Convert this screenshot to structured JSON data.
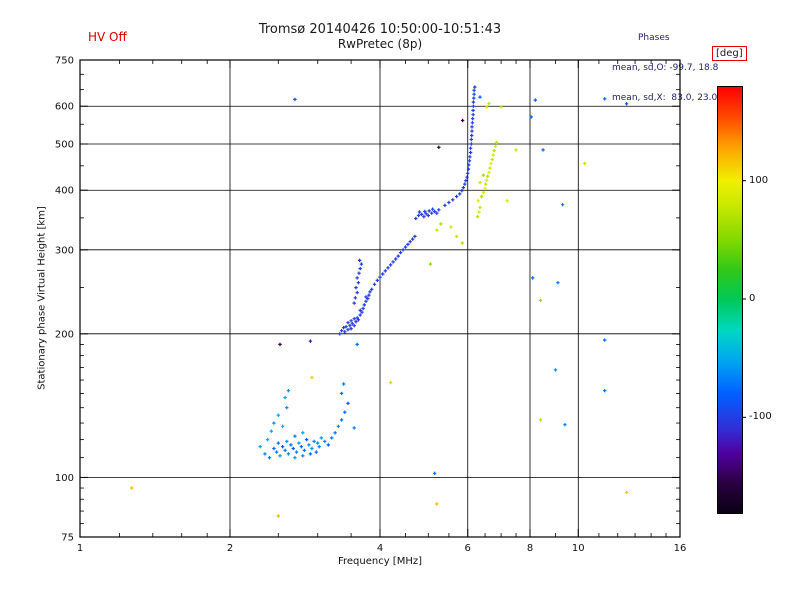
{
  "header": {
    "hv_off": "HV Off",
    "title": "Tromsø 20140426 10:50:00-10:51:43",
    "subtitle": "RwPretec (8p)",
    "phases": {
      "line1": "Phases",
      "line2": "mean, sd,O: -99.7, 18.8",
      "line3": "mean, sd,X:  83.0, 23.0"
    }
  },
  "colors": {
    "hv_off_red": "#d40000",
    "colorbar_box_red": "#e00000",
    "annotation_blue": "#23236b",
    "axis_black": "#000000"
  },
  "chart_data": {
    "type": "scatter",
    "title": "Tromsø 20140426 10:50:00-10:51:43",
    "subtitle": "RwPretec (8p)",
    "xlabel": "Frequency [MHz]",
    "ylabel": "Stationary phase Virtual Height [km]",
    "x_scale": "log",
    "y_scale": "log",
    "xlim": [
      1,
      16
    ],
    "ylim": [
      75,
      750
    ],
    "x_ticks": [
      1,
      2,
      4,
      6,
      8,
      10,
      16
    ],
    "x_minor_ticks": [
      1.2,
      1.4,
      1.6,
      1.8,
      2.5,
      3,
      3.5,
      4.5,
      5,
      5.5,
      6.5,
      7,
      7.5,
      9,
      11,
      12,
      13,
      14,
      15
    ],
    "y_ticks": [
      75,
      100,
      200,
      300,
      400,
      500,
      600,
      750
    ],
    "y_minor_ticks": [
      80,
      85,
      90,
      95,
      110,
      120,
      130,
      140,
      150,
      160,
      170,
      180,
      190,
      250,
      350,
      450,
      550,
      650,
      700
    ],
    "x_grid": [
      2,
      4,
      6,
      8,
      10
    ],
    "y_grid": [
      100,
      200,
      300,
      400,
      500,
      600
    ],
    "grid": true,
    "colorbar": {
      "label": "[deg]",
      "min": -180,
      "max": 180,
      "ticks": [
        100,
        0,
        -100
      ],
      "stops": [
        {
          "t": 0.0,
          "c": "#0a0014"
        },
        {
          "t": 0.07,
          "c": "#2a0040"
        },
        {
          "t": 0.14,
          "c": "#5000a0"
        },
        {
          "t": 0.2,
          "c": "#3030d8"
        },
        {
          "t": 0.28,
          "c": "#0060ff"
        },
        {
          "t": 0.36,
          "c": "#00a8f0"
        },
        {
          "t": 0.43,
          "c": "#00d8c0"
        },
        {
          "t": 0.5,
          "c": "#00c858"
        },
        {
          "t": 0.57,
          "c": "#30c818"
        },
        {
          "t": 0.64,
          "c": "#80d800"
        },
        {
          "t": 0.72,
          "c": "#c8e800"
        },
        {
          "t": 0.78,
          "c": "#f0f000"
        },
        {
          "t": 0.86,
          "c": "#ffa000"
        },
        {
          "t": 0.93,
          "c": "#ff4800"
        },
        {
          "t": 1.0,
          "c": "#ff0000"
        }
      ]
    },
    "points_format": [
      "frequency_MHz",
      "virtual_height_km",
      "phase_deg"
    ],
    "points": [
      [
        2.3,
        116,
        -55
      ],
      [
        2.35,
        112,
        -62
      ],
      [
        2.38,
        120,
        -48
      ],
      [
        2.4,
        110,
        -70
      ],
      [
        2.42,
        125,
        -55
      ],
      [
        2.45,
        115,
        -78
      ],
      [
        2.45,
        130,
        -60
      ],
      [
        2.48,
        113,
        -66
      ],
      [
        2.5,
        118,
        -72
      ],
      [
        2.5,
        135,
        -52
      ],
      [
        2.52,
        111,
        -60
      ],
      [
        2.55,
        116,
        -88
      ],
      [
        2.55,
        128,
        -47
      ],
      [
        2.58,
        114,
        -70
      ],
      [
        2.6,
        119,
        -56
      ],
      [
        2.6,
        140,
        -62
      ],
      [
        2.62,
        112,
        -66
      ],
      [
        2.65,
        117,
        -74
      ],
      [
        2.68,
        115,
        -84
      ],
      [
        2.7,
        110,
        -60
      ],
      [
        2.7,
        122,
        -70
      ],
      [
        2.72,
        113,
        -64
      ],
      [
        2.75,
        118,
        -58
      ],
      [
        2.78,
        116,
        -76
      ],
      [
        2.8,
        111,
        -66
      ],
      [
        2.8,
        124,
        -54
      ],
      [
        2.82,
        114,
        -70
      ],
      [
        2.85,
        120,
        -80
      ],
      [
        2.88,
        117,
        -62
      ],
      [
        2.9,
        112,
        -72
      ],
      [
        2.92,
        115,
        -58
      ],
      [
        2.95,
        119,
        -66
      ],
      [
        2.98,
        113,
        -74
      ],
      [
        3.0,
        118,
        -62
      ],
      [
        3.02,
        116,
        -70
      ],
      [
        3.05,
        121,
        -56
      ],
      [
        3.1,
        119,
        -64
      ],
      [
        3.15,
        117,
        -82
      ],
      [
        3.2,
        121,
        -68
      ],
      [
        3.25,
        124,
        -74
      ],
      [
        3.3,
        128,
        -62
      ],
      [
        3.35,
        132,
        -70
      ],
      [
        3.4,
        137,
        -78
      ],
      [
        3.45,
        143,
        -86
      ],
      [
        3.35,
        150,
        -72
      ],
      [
        3.38,
        157,
        -66
      ],
      [
        2.62,
        152,
        -58
      ],
      [
        2.58,
        147,
        -50
      ],
      [
        3.32,
        200,
        -98
      ],
      [
        3.35,
        203,
        -104
      ],
      [
        3.38,
        206,
        -96
      ],
      [
        3.4,
        202,
        -108
      ],
      [
        3.42,
        207,
        -100
      ],
      [
        3.45,
        204,
        -95
      ],
      [
        3.45,
        211,
        -106
      ],
      [
        3.48,
        208,
        -100
      ],
      [
        3.5,
        205,
        -112
      ],
      [
        3.5,
        213,
        -98
      ],
      [
        3.52,
        210,
        -104
      ],
      [
        3.55,
        208,
        -96
      ],
      [
        3.55,
        215,
        -102
      ],
      [
        3.58,
        212,
        -108
      ],
      [
        3.6,
        216,
        -98
      ],
      [
        3.62,
        214,
        -104
      ],
      [
        3.65,
        219,
        -96
      ],
      [
        3.65,
        224,
        -102
      ],
      [
        3.68,
        222,
        -108
      ],
      [
        3.7,
        226,
        -98
      ],
      [
        3.72,
        230,
        -104
      ],
      [
        3.75,
        234,
        -96
      ],
      [
        3.75,
        239,
        -102
      ],
      [
        3.78,
        237,
        -98
      ],
      [
        3.8,
        241,
        -106
      ],
      [
        3.82,
        245,
        -100
      ],
      [
        3.85,
        248,
        -96
      ],
      [
        3.55,
        232,
        -100
      ],
      [
        3.57,
        238,
        -104
      ],
      [
        3.6,
        244,
        -98
      ],
      [
        3.58,
        250,
        -106
      ],
      [
        3.62,
        256,
        -100
      ],
      [
        3.6,
        262,
        -96
      ],
      [
        3.63,
        268,
        -104
      ],
      [
        3.65,
        274,
        -100
      ],
      [
        3.67,
        280,
        -96
      ],
      [
        3.64,
        285,
        -108
      ],
      [
        3.9,
        254,
        -100
      ],
      [
        3.95,
        259,
        -104
      ],
      [
        4.0,
        263,
        -96
      ],
      [
        4.05,
        267,
        -102
      ],
      [
        4.1,
        271,
        -98
      ],
      [
        4.15,
        275,
        -106
      ],
      [
        4.2,
        279,
        -100
      ],
      [
        4.25,
        283,
        -96
      ],
      [
        4.3,
        287,
        -104
      ],
      [
        4.35,
        291,
        -100
      ],
      [
        4.4,
        296,
        -96
      ],
      [
        4.45,
        300,
        -104
      ],
      [
        4.5,
        304,
        -100
      ],
      [
        4.55,
        308,
        -96
      ],
      [
        4.6,
        312,
        -104
      ],
      [
        4.65,
        316,
        -100
      ],
      [
        4.7,
        320,
        -98
      ],
      [
        4.72,
        349,
        -100
      ],
      [
        4.78,
        354,
        -96
      ],
      [
        4.8,
        360,
        -104
      ],
      [
        4.85,
        356,
        -100
      ],
      [
        4.9,
        352,
        -108
      ],
      [
        4.92,
        361,
        -96
      ],
      [
        4.95,
        357,
        -102
      ],
      [
        5.0,
        354,
        -98
      ],
      [
        5.02,
        362,
        -104
      ],
      [
        5.08,
        358,
        -100
      ],
      [
        5.1,
        365,
        -96
      ],
      [
        5.15,
        361,
        -104
      ],
      [
        5.2,
        358,
        -100
      ],
      [
        5.25,
        364,
        -98
      ],
      [
        5.3,
        340,
        65
      ],
      [
        5.55,
        335,
        85
      ],
      [
        5.7,
        320,
        80
      ],
      [
        5.85,
        310,
        70
      ],
      [
        5.05,
        280,
        55
      ],
      [
        5.2,
        330,
        78
      ],
      [
        5.4,
        372,
        -100
      ],
      [
        5.5,
        377,
        -96
      ],
      [
        5.6,
        382,
        -104
      ],
      [
        5.7,
        388,
        -100
      ],
      [
        5.78,
        393,
        -96
      ],
      [
        5.84,
        399,
        -104
      ],
      [
        5.88,
        405,
        -100
      ],
      [
        5.92,
        412,
        -96
      ],
      [
        5.95,
        419,
        -104
      ],
      [
        5.98,
        426,
        -100
      ],
      [
        6.0,
        434,
        -98
      ],
      [
        6.02,
        443,
        -104
      ],
      [
        6.03,
        452,
        -96
      ],
      [
        6.05,
        461,
        -102
      ],
      [
        6.06,
        470,
        -98
      ],
      [
        6.08,
        480,
        -106
      ],
      [
        6.08,
        490,
        -96
      ],
      [
        6.1,
        500,
        -102
      ],
      [
        6.1,
        511,
        -98
      ],
      [
        6.11,
        521,
        -104
      ],
      [
        6.12,
        532,
        -96
      ],
      [
        6.12,
        543,
        -102
      ],
      [
        6.13,
        554,
        -98
      ],
      [
        6.14,
        565,
        -104
      ],
      [
        6.15,
        576,
        -96
      ],
      [
        6.15,
        588,
        -102
      ],
      [
        6.16,
        600,
        -98
      ],
      [
        6.16,
        612,
        -104
      ],
      [
        6.17,
        624,
        -96
      ],
      [
        6.18,
        636,
        -100
      ],
      [
        6.18,
        648,
        -96
      ],
      [
        6.2,
        658,
        -102
      ],
      [
        6.28,
        352,
        72
      ],
      [
        6.32,
        360,
        88
      ],
      [
        6.35,
        368,
        78
      ],
      [
        6.3,
        380,
        92
      ],
      [
        6.4,
        388,
        70
      ],
      [
        6.45,
        396,
        84
      ],
      [
        6.5,
        404,
        95
      ],
      [
        6.52,
        412,
        75
      ],
      [
        6.55,
        420,
        88
      ],
      [
        6.58,
        428,
        68
      ],
      [
        6.62,
        436,
        92
      ],
      [
        6.65,
        445,
        80
      ],
      [
        6.68,
        455,
        96
      ],
      [
        6.72,
        464,
        74
      ],
      [
        6.75,
        474,
        86
      ],
      [
        6.78,
        484,
        70
      ],
      [
        6.82,
        494,
        90
      ],
      [
        6.86,
        504,
        78
      ],
      [
        6.55,
        598,
        88
      ],
      [
        6.62,
        608,
        76
      ],
      [
        6.45,
        430,
        60
      ],
      [
        6.35,
        415,
        82
      ],
      [
        2.7,
        620,
        -85
      ],
      [
        2.52,
        190,
        -155
      ],
      [
        2.9,
        193,
        -120
      ],
      [
        2.92,
        162,
        115
      ],
      [
        3.6,
        190,
        -75
      ],
      [
        3.55,
        127,
        -65
      ],
      [
        4.2,
        158,
        112
      ],
      [
        1.27,
        95,
        118
      ],
      [
        2.5,
        83,
        122
      ],
      [
        5.2,
        88,
        120
      ],
      [
        5.15,
        102,
        -70
      ],
      [
        8.2,
        618,
        -80
      ],
      [
        11.3,
        622,
        -75
      ],
      [
        12.5,
        607,
        -85
      ],
      [
        12.5,
        93,
        115
      ],
      [
        11.3,
        152,
        -70
      ],
      [
        9.4,
        129,
        -65
      ],
      [
        8.4,
        132,
        72
      ],
      [
        9.0,
        168,
        -60
      ],
      [
        8.4,
        235,
        62
      ],
      [
        9.1,
        256,
        -70
      ],
      [
        11.3,
        194,
        -75
      ],
      [
        8.5,
        486,
        -75
      ],
      [
        9.3,
        373,
        -65
      ],
      [
        10.3,
        455,
        78
      ],
      [
        7.5,
        486,
        75
      ],
      [
        7.2,
        380,
        85
      ],
      [
        8.05,
        570,
        -70
      ],
      [
        8.1,
        262,
        -75
      ],
      [
        6.35,
        627,
        -80
      ],
      [
        5.86,
        560,
        -150
      ],
      [
        5.25,
        492,
        -155
      ],
      [
        7.0,
        598,
        80
      ]
    ],
    "annotations": {
      "hv_off": "HV Off",
      "phases_header": "Phases",
      "phases_O": "mean, sd,O: -99.7, 18.8",
      "phases_X": "mean, sd,X:  83.0, 23.0"
    },
    "legend_position": "right-colorbar"
  }
}
